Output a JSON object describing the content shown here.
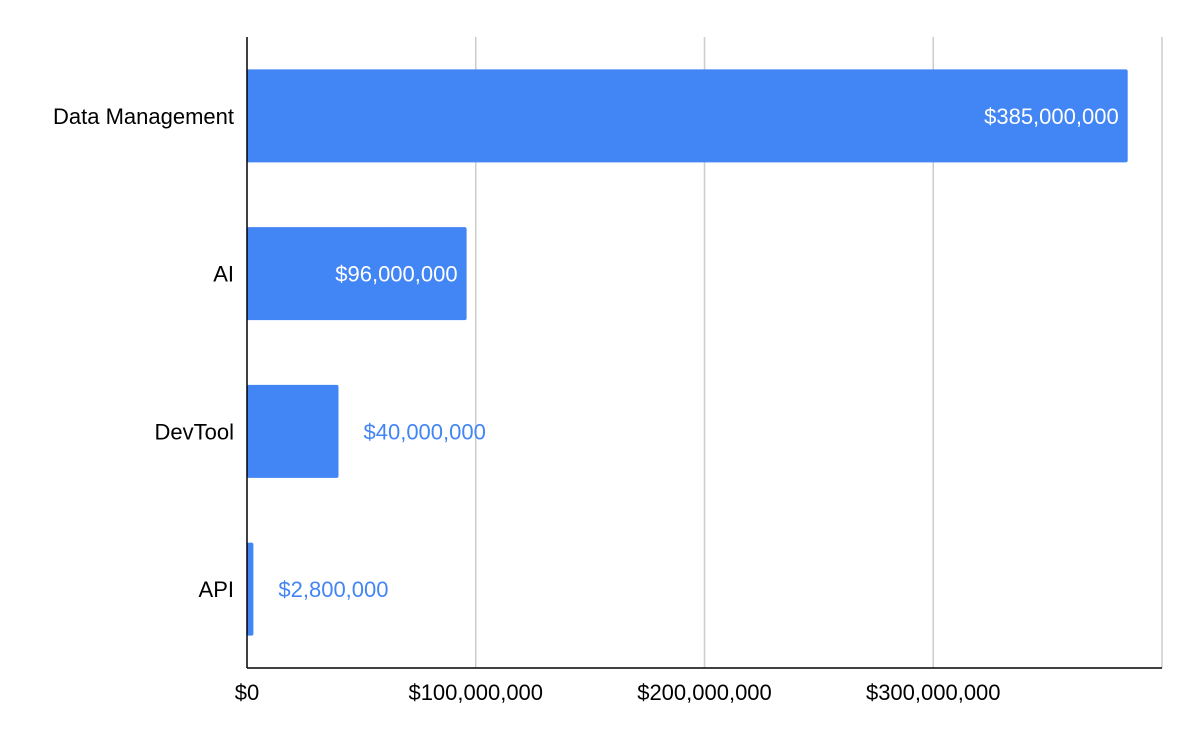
{
  "chart_data": {
    "type": "bar",
    "orientation": "horizontal",
    "title": "",
    "xlabel": "",
    "ylabel": "",
    "categories": [
      "Data Management",
      "AI",
      "DevTool",
      "API"
    ],
    "values": [
      385000000,
      96000000,
      40000000,
      2800000
    ],
    "value_labels": [
      "$385,000,000",
      "$96,000,000",
      "$40,000,000",
      "$2,800,000"
    ],
    "x_ticks": [
      0,
      100000000,
      200000000,
      300000000,
      400000000
    ],
    "x_tick_labels": [
      "$0",
      "$100,000,000",
      "$200,000,000",
      "$300,000,000",
      ""
    ],
    "xlim": [
      0,
      400000000
    ],
    "grid": true,
    "legend": "none",
    "colors": {
      "bar": "#4285f4",
      "label_inside": "#ffffff",
      "label_outside": "#4285f4",
      "grid": "#cccccc",
      "axis": "#000000"
    }
  }
}
